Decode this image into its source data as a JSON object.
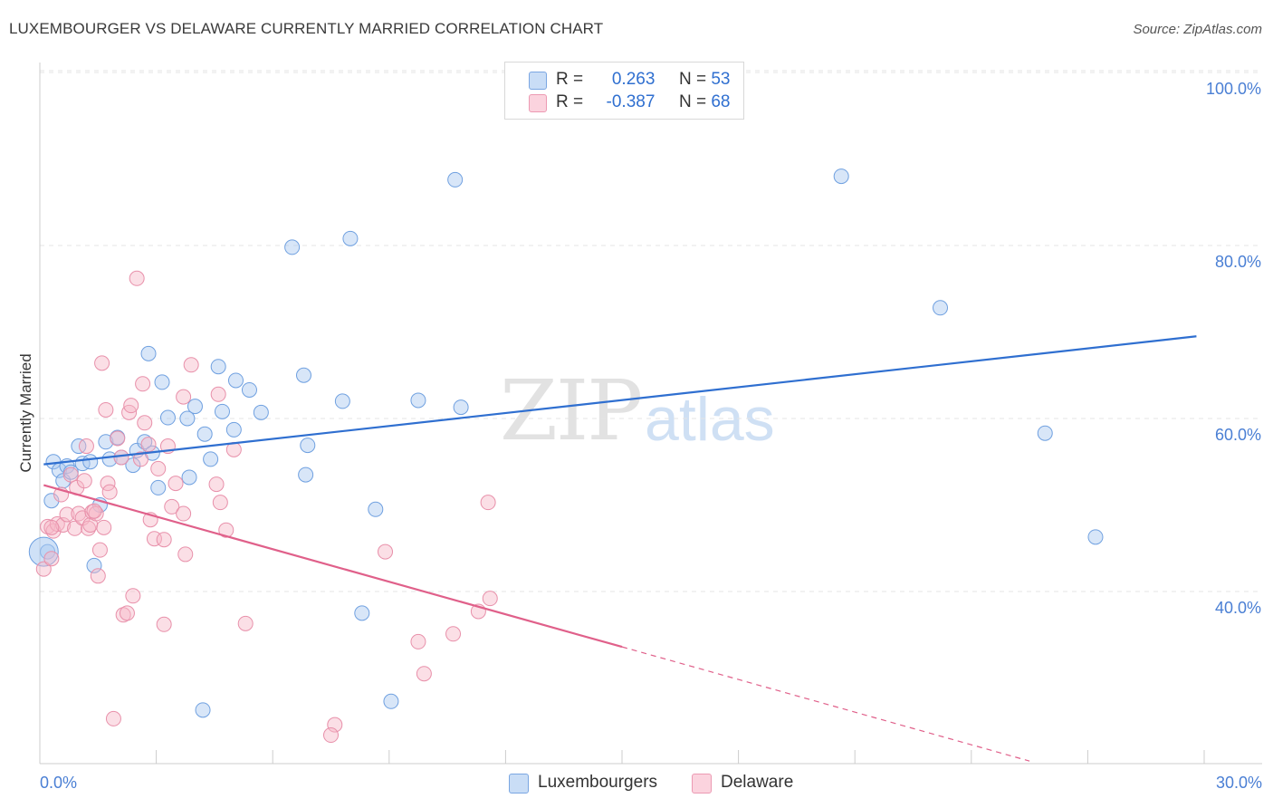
{
  "header": {
    "title": "LUXEMBOURGER VS DELAWARE CURRENTLY MARRIED CORRELATION CHART",
    "source": "Source: ZipAtlas.com"
  },
  "watermark": {
    "zip": "ZIP",
    "atlas": "atlas"
  },
  "legend": {
    "rows": [
      {
        "r_label": "R =",
        "r_value": "0.263",
        "n_label": "N =",
        "n_value": "53",
        "color": "#a8c8f0"
      },
      {
        "r_label": "R =",
        "r_value": "-0.387",
        "n_label": "N =",
        "n_value": "68",
        "color": "#f6b8c8"
      }
    ]
  },
  "bottom_legend": [
    {
      "label": "Luxembourgers",
      "color": "#a8c8f0"
    },
    {
      "label": "Delaware",
      "color": "#f6b8c8"
    }
  ],
  "chart_data": {
    "type": "scatter",
    "title": "LUXEMBOURGER VS DELAWARE CURRENTLY MARRIED CORRELATION CHART",
    "xlabel": "",
    "ylabel": "Currently Married",
    "xlim": [
      0,
      30
    ],
    "ylim": [
      20,
      104
    ],
    "x_tick_labels": [
      "0.0%",
      "30.0%"
    ],
    "y_ticks": [
      40,
      60,
      80,
      100
    ],
    "y_tick_labels": [
      "40.0%",
      "60.0%",
      "80.0%",
      "100.0%"
    ],
    "grid": true,
    "series": [
      {
        "name": "Luxembourgers",
        "color": "#6fa0e0",
        "fill": "#a8c8f0",
        "trend": {
          "x": [
            0.1,
            29.8
          ],
          "y": [
            54.7,
            69.5
          ],
          "color": "#2f6fd0"
        },
        "points": [
          [
            0.2,
            44.6
          ],
          [
            0.3,
            50.5
          ],
          [
            0.35,
            55.0
          ],
          [
            0.5,
            54.0
          ],
          [
            0.6,
            52.8
          ],
          [
            0.7,
            54.5
          ],
          [
            0.8,
            53.8
          ],
          [
            1.0,
            56.8
          ],
          [
            1.1,
            54.8
          ],
          [
            1.3,
            55.0
          ],
          [
            1.4,
            43.0
          ],
          [
            1.55,
            50.0
          ],
          [
            1.7,
            57.3
          ],
          [
            1.8,
            55.3
          ],
          [
            2.0,
            57.8
          ],
          [
            2.1,
            55.5
          ],
          [
            2.4,
            54.6
          ],
          [
            2.5,
            56.3
          ],
          [
            2.7,
            57.3
          ],
          [
            2.8,
            67.5
          ],
          [
            2.9,
            56.0
          ],
          [
            3.05,
            52.0
          ],
          [
            3.15,
            64.2
          ],
          [
            3.3,
            60.1
          ],
          [
            3.8,
            60.0
          ],
          [
            3.85,
            53.2
          ],
          [
            4.0,
            61.4
          ],
          [
            4.2,
            26.3
          ],
          [
            4.25,
            58.2
          ],
          [
            4.4,
            55.3
          ],
          [
            4.6,
            66.0
          ],
          [
            4.7,
            60.8
          ],
          [
            5.0,
            58.7
          ],
          [
            5.05,
            64.4
          ],
          [
            5.4,
            63.3
          ],
          [
            5.7,
            60.7
          ],
          [
            6.5,
            79.8
          ],
          [
            6.8,
            65.0
          ],
          [
            6.85,
            53.5
          ],
          [
            6.9,
            56.9
          ],
          [
            7.8,
            62.0
          ],
          [
            8.0,
            80.8
          ],
          [
            8.3,
            37.5
          ],
          [
            8.65,
            49.5
          ],
          [
            9.05,
            27.3
          ],
          [
            9.75,
            62.1
          ],
          [
            10.7,
            87.6
          ],
          [
            10.85,
            61.3
          ],
          [
            20.65,
            88.0
          ],
          [
            23.2,
            72.8
          ],
          [
            25.9,
            58.3
          ],
          [
            27.2,
            46.3
          ],
          [
            0.1,
            44.6
          ]
        ]
      },
      {
        "name": "Delaware",
        "color": "#e890aa",
        "fill": "#f6b8c8",
        "trend": {
          "x": [
            0.1,
            15.0
          ],
          "y": [
            52.3,
            33.6
          ],
          "color": "#e0608a"
        },
        "trend_extension": {
          "x": [
            15.0,
            25.5
          ],
          "y": [
            33.6,
            20.4
          ]
        },
        "points": [
          [
            0.1,
            42.6
          ],
          [
            0.2,
            47.5
          ],
          [
            0.3,
            43.8
          ],
          [
            0.35,
            47.0
          ],
          [
            0.45,
            47.8
          ],
          [
            0.55,
            51.2
          ],
          [
            0.6,
            47.7
          ],
          [
            0.7,
            48.9
          ],
          [
            0.8,
            53.5
          ],
          [
            0.9,
            47.3
          ],
          [
            0.95,
            52.0
          ],
          [
            1.0,
            49.0
          ],
          [
            1.1,
            48.5
          ],
          [
            1.15,
            52.8
          ],
          [
            1.2,
            56.8
          ],
          [
            1.25,
            47.3
          ],
          [
            1.3,
            47.7
          ],
          [
            1.35,
            49.2
          ],
          [
            1.45,
            49.0
          ],
          [
            1.5,
            41.8
          ],
          [
            1.55,
            44.8
          ],
          [
            1.6,
            66.4
          ],
          [
            1.65,
            47.4
          ],
          [
            1.7,
            61.0
          ],
          [
            1.75,
            52.5
          ],
          [
            1.8,
            51.5
          ],
          [
            1.9,
            25.3
          ],
          [
            2.0,
            57.7
          ],
          [
            2.1,
            55.5
          ],
          [
            2.15,
            37.3
          ],
          [
            2.25,
            37.5
          ],
          [
            2.3,
            60.7
          ],
          [
            2.35,
            61.5
          ],
          [
            2.4,
            39.5
          ],
          [
            2.5,
            76.2
          ],
          [
            2.6,
            55.3
          ],
          [
            2.65,
            64.0
          ],
          [
            2.7,
            59.5
          ],
          [
            2.8,
            57.0
          ],
          [
            2.85,
            48.3
          ],
          [
            2.95,
            46.1
          ],
          [
            3.05,
            54.2
          ],
          [
            3.2,
            46.0
          ],
          [
            3.2,
            36.2
          ],
          [
            3.3,
            56.8
          ],
          [
            3.4,
            49.8
          ],
          [
            3.5,
            52.5
          ],
          [
            3.7,
            49.0
          ],
          [
            3.75,
            44.3
          ],
          [
            3.9,
            66.2
          ],
          [
            4.6,
            62.8
          ],
          [
            4.55,
            52.4
          ],
          [
            4.65,
            50.3
          ],
          [
            4.8,
            47.1
          ],
          [
            5.0,
            56.4
          ],
          [
            5.3,
            36.3
          ],
          [
            7.6,
            24.6
          ],
          [
            7.5,
            23.4
          ],
          [
            8.9,
            44.6
          ],
          [
            9.75,
            34.2
          ],
          [
            9.9,
            30.5
          ],
          [
            10.65,
            35.1
          ],
          [
            11.3,
            37.7
          ],
          [
            11.6,
            39.2
          ],
          [
            11.55,
            50.3
          ],
          [
            3.7,
            62.5
          ],
          [
            1.4,
            49.3
          ],
          [
            0.3,
            47.4
          ]
        ]
      }
    ]
  }
}
